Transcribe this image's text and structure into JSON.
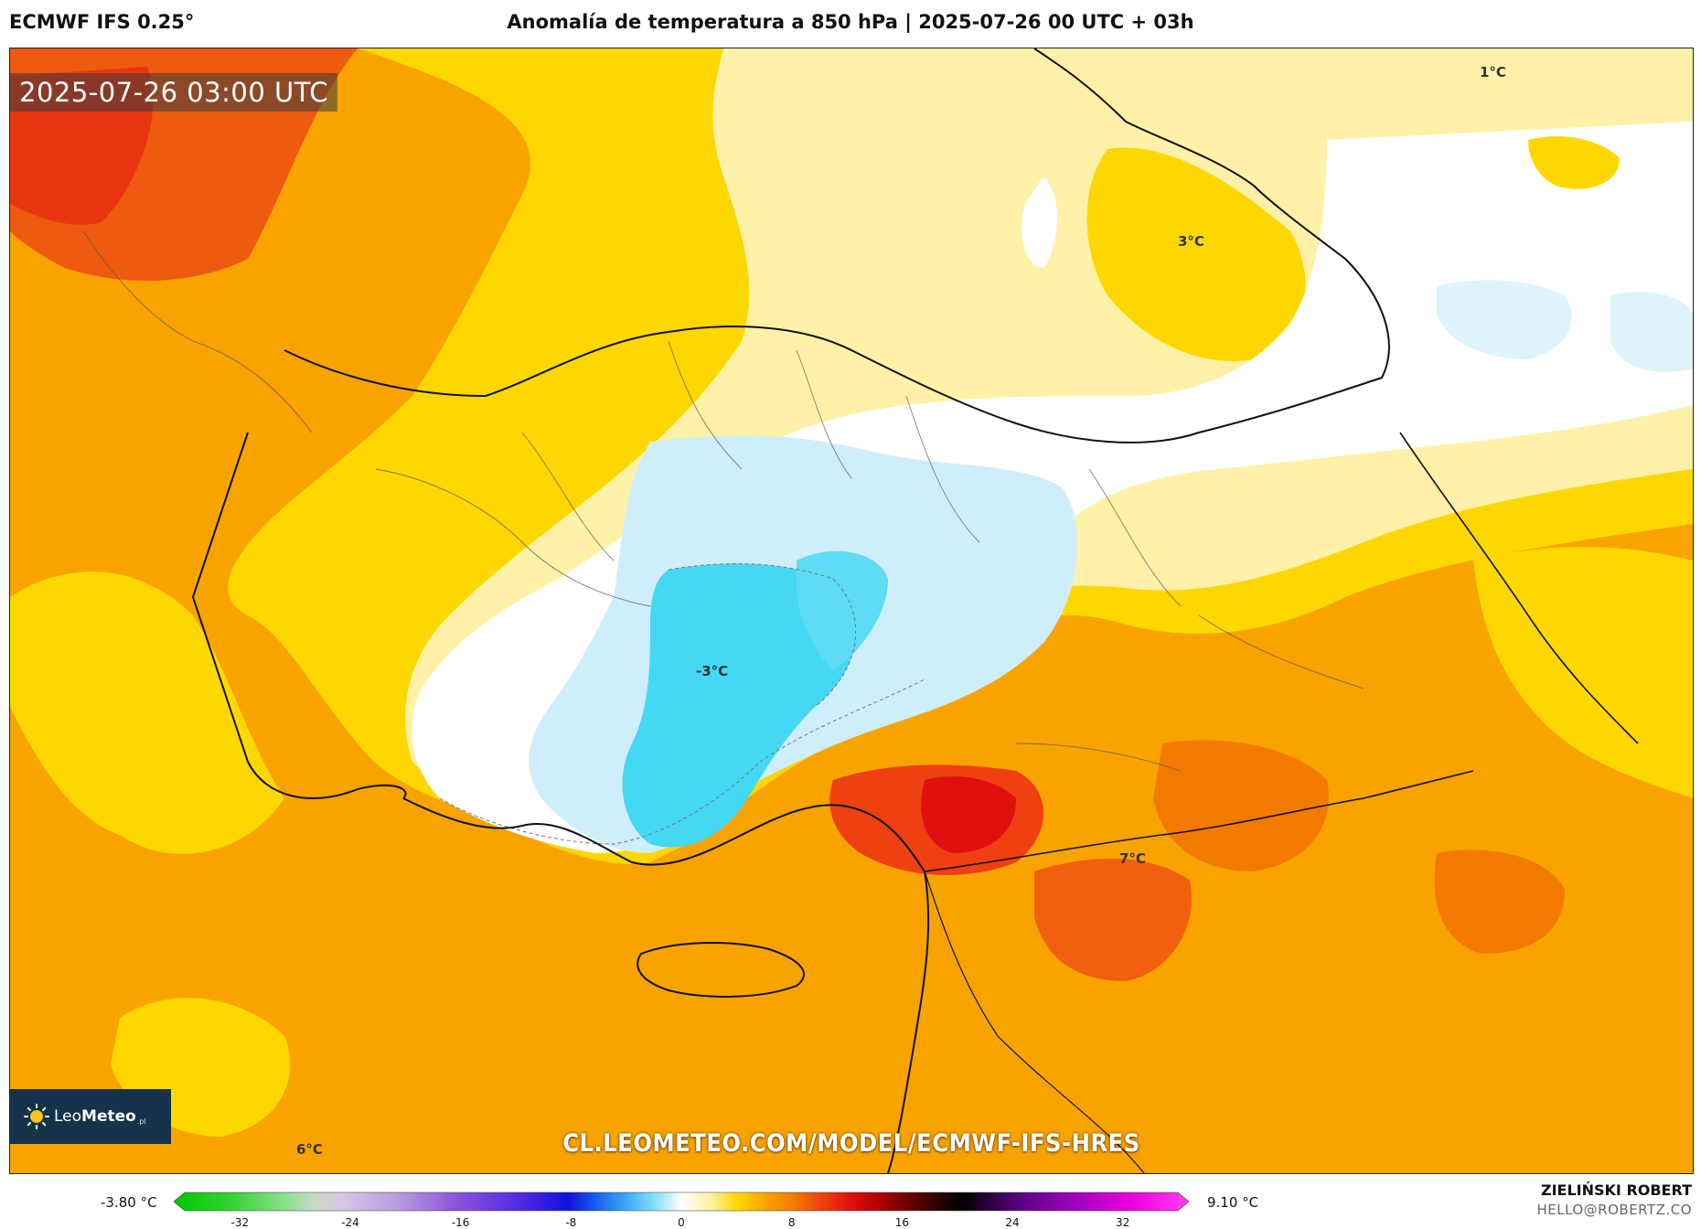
{
  "header": {
    "model_name": "ECMWF IFS 0.25°",
    "title": "Anomalía de temperatura a 850 hPa | 2025-07-26 00 UTC + 03h"
  },
  "map": {
    "valid_time": "2025-07-26 03:00 UTC",
    "point_labels": {
      "ne_top": "1°C",
      "north_center": "3°C",
      "central_anatolia": "-3°C",
      "southeast": "7°C",
      "southwest": "6°C"
    },
    "region_colors": {
      "warm_orange": "#f9a300",
      "hot_red": "#f04a10",
      "yellow": "#ffd700",
      "pale_yellow": "#fff2a8",
      "white": "#ffffff",
      "light_blue": "#cfeefc",
      "cyan": "#45d8f5"
    },
    "logo": {
      "name_light": "Leo",
      "name_bold": "Meteo",
      "suffix": ".pl",
      "icon": "sun-icon"
    },
    "source_url": "CL.LEOMETEO.COM/MODEL/ECMWF-IFS-HRES"
  },
  "colorbar": {
    "min_value": "-3.80 °C",
    "max_value": "9.10 °C",
    "ticks": [
      "-32",
      "-24",
      "-16",
      "-8",
      "0",
      "8",
      "16",
      "24",
      "32"
    ],
    "tick_values": [
      -32,
      -24,
      -16,
      -8,
      0,
      8,
      16,
      24,
      32
    ],
    "range": [
      -36,
      36
    ],
    "stops": [
      {
        "v": -36,
        "c": "#00c800"
      },
      {
        "v": -32,
        "c": "#33d233"
      },
      {
        "v": -28,
        "c": "#8fe08f"
      },
      {
        "v": -26,
        "c": "#c8dcc8"
      },
      {
        "v": -24,
        "c": "#d6c6e6"
      },
      {
        "v": -20,
        "c": "#b89adf"
      },
      {
        "v": -16,
        "c": "#8a55dc"
      },
      {
        "v": -12,
        "c": "#5a2fe0"
      },
      {
        "v": -8,
        "c": "#1010e0"
      },
      {
        "v": -6,
        "c": "#1a60f0"
      },
      {
        "v": -4,
        "c": "#3aa8f5"
      },
      {
        "v": -2,
        "c": "#80dcf8"
      },
      {
        "v": 0,
        "c": "#ffffff"
      },
      {
        "v": 2,
        "c": "#fff2a8"
      },
      {
        "v": 4,
        "c": "#ffd700"
      },
      {
        "v": 6,
        "c": "#f9a300"
      },
      {
        "v": 8,
        "c": "#f37a00"
      },
      {
        "v": 10,
        "c": "#ee4010"
      },
      {
        "v": 12,
        "c": "#e01010"
      },
      {
        "v": 14,
        "c": "#b00000"
      },
      {
        "v": 16,
        "c": "#700000"
      },
      {
        "v": 18,
        "c": "#300000"
      },
      {
        "v": 20,
        "c": "#000000"
      },
      {
        "v": 22,
        "c": "#300040"
      },
      {
        "v": 24,
        "c": "#5a0080"
      },
      {
        "v": 28,
        "c": "#a000c0"
      },
      {
        "v": 32,
        "c": "#ee00dd"
      },
      {
        "v": 36,
        "c": "#ff40f0"
      }
    ]
  },
  "credits": {
    "author": "ZIELIŃSKI ROBERT",
    "email": "HELLO@ROBERTZ.CO"
  }
}
